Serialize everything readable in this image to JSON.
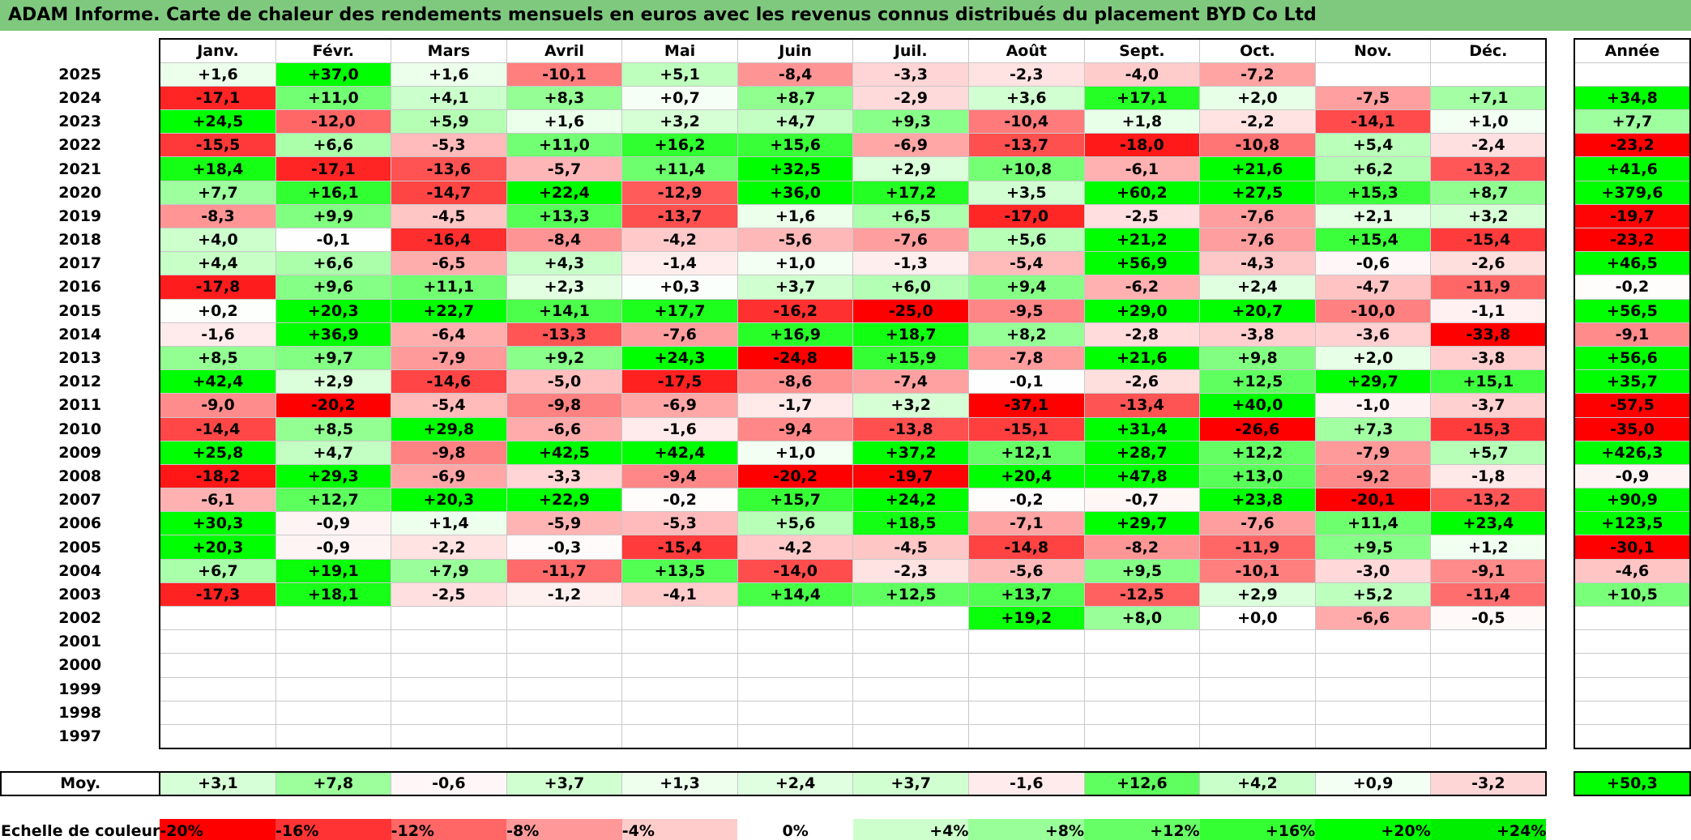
{
  "title": "ADAM Informe. Carte de chaleur des rendements mensuels en euros avec les revenus connus distribués du placement BYD Co Ltd",
  "chart_data": {
    "type": "heatmap",
    "title": "ADAM Informe. Carte de chaleur des rendements mensuels en euros avec les revenus connus distribués du placement BYD Co Ltd",
    "columns": [
      "Janv.",
      "Févr.",
      "Mars",
      "Avril",
      "Mai",
      "Juin",
      "Juil.",
      "Août",
      "Sept.",
      "Oct.",
      "Nov.",
      "Déc."
    ],
    "annual_header": "Année",
    "rows": [
      {
        "year": "2025",
        "months": [
          "+1,6",
          "+37,0",
          "+1,6",
          "-10,1",
          "+5,1",
          "-8,4",
          "-3,3",
          "-2,3",
          "-4,0",
          "-7,2",
          "",
          ""
        ],
        "annual": ""
      },
      {
        "year": "2024",
        "months": [
          "-17,1",
          "+11,0",
          "+4,1",
          "+8,3",
          "+0,7",
          "+8,7",
          "-2,9",
          "+3,6",
          "+17,1",
          "+2,0",
          "-7,5",
          "+7,1"
        ],
        "annual": "+34,8"
      },
      {
        "year": "2023",
        "months": [
          "+24,5",
          "-12,0",
          "+5,9",
          "+1,6",
          "+3,2",
          "+4,7",
          "+9,3",
          "-10,4",
          "+1,8",
          "-2,2",
          "-14,1",
          "+1,0"
        ],
        "annual": "+7,7"
      },
      {
        "year": "2022",
        "months": [
          "-15,5",
          "+6,6",
          "-5,3",
          "+11,0",
          "+16,2",
          "+15,6",
          "-6,9",
          "-13,7",
          "-18,0",
          "-10,8",
          "+5,4",
          "-2,4"
        ],
        "annual": "-23,2"
      },
      {
        "year": "2021",
        "months": [
          "+18,4",
          "-17,1",
          "-13,6",
          "-5,7",
          "+11,4",
          "+32,5",
          "+2,9",
          "+10,8",
          "-6,1",
          "+21,6",
          "+6,2",
          "-13,2"
        ],
        "annual": "+41,6"
      },
      {
        "year": "2020",
        "months": [
          "+7,7",
          "+16,1",
          "-14,7",
          "+22,4",
          "-12,9",
          "+36,0",
          "+17,2",
          "+3,5",
          "+60,2",
          "+27,5",
          "+15,3",
          "+8,7"
        ],
        "annual": "+379,6"
      },
      {
        "year": "2019",
        "months": [
          "-8,3",
          "+9,9",
          "-4,5",
          "+13,3",
          "-13,7",
          "+1,6",
          "+6,5",
          "-17,0",
          "-2,5",
          "-7,6",
          "+2,1",
          "+3,2"
        ],
        "annual": "-19,7"
      },
      {
        "year": "2018",
        "months": [
          "+4,0",
          "-0,1",
          "-16,4",
          "-8,4",
          "-4,2",
          "-5,6",
          "-7,6",
          "+5,6",
          "+21,2",
          "-7,6",
          "+15,4",
          "-15,4"
        ],
        "annual": "-23,2"
      },
      {
        "year": "2017",
        "months": [
          "+4,4",
          "+6,6",
          "-6,5",
          "+4,3",
          "-1,4",
          "+1,0",
          "-1,3",
          "-5,4",
          "+56,9",
          "-4,3",
          "-0,6",
          "-2,6"
        ],
        "annual": "+46,5"
      },
      {
        "year": "2016",
        "months": [
          "-17,8",
          "+9,6",
          "+11,1",
          "+2,3",
          "+0,3",
          "+3,7",
          "+6,0",
          "+9,4",
          "-6,2",
          "+2,4",
          "-4,7",
          "-11,9"
        ],
        "annual": "-0,2"
      },
      {
        "year": "2015",
        "months": [
          "+0,2",
          "+20,3",
          "+22,7",
          "+14,1",
          "+17,7",
          "-16,2",
          "-25,0",
          "-9,5",
          "+29,0",
          "+20,7",
          "-10,0",
          "-1,1"
        ],
        "annual": "+56,5"
      },
      {
        "year": "2014",
        "months": [
          "-1,6",
          "+36,9",
          "-6,4",
          "-13,3",
          "-7,6",
          "+16,9",
          "+18,7",
          "+8,2",
          "-2,8",
          "-3,8",
          "-3,6",
          "-33,8"
        ],
        "annual": "-9,1"
      },
      {
        "year": "2013",
        "months": [
          "+8,5",
          "+9,7",
          "-7,9",
          "+9,2",
          "+24,3",
          "-24,8",
          "+15,9",
          "-7,8",
          "+21,6",
          "+9,8",
          "+2,0",
          "-3,8"
        ],
        "annual": "+56,6"
      },
      {
        "year": "2012",
        "months": [
          "+42,4",
          "+2,9",
          "-14,6",
          "-5,0",
          "-17,5",
          "-8,6",
          "-7,4",
          "-0,1",
          "-2,6",
          "+12,5",
          "+29,7",
          "+15,1"
        ],
        "annual": "+35,7"
      },
      {
        "year": "2011",
        "months": [
          "-9,0",
          "-20,2",
          "-5,4",
          "-9,8",
          "-6,9",
          "-1,7",
          "+3,2",
          "-37,1",
          "-13,4",
          "+40,0",
          "-1,0",
          "-3,7"
        ],
        "annual": "-57,5"
      },
      {
        "year": "2010",
        "months": [
          "-14,4",
          "+8,5",
          "+29,8",
          "-6,6",
          "-1,6",
          "-9,4",
          "-13,8",
          "-15,1",
          "+31,4",
          "-26,6",
          "+7,3",
          "-15,3"
        ],
        "annual": "-35,0"
      },
      {
        "year": "2009",
        "months": [
          "+25,8",
          "+4,7",
          "-9,8",
          "+42,5",
          "+42,4",
          "+1,0",
          "+37,2",
          "+12,1",
          "+28,7",
          "+12,2",
          "-7,9",
          "+5,7"
        ],
        "annual": "+426,3"
      },
      {
        "year": "2008",
        "months": [
          "-18,2",
          "+29,3",
          "-6,9",
          "-3,3",
          "-9,4",
          "-20,2",
          "-19,7",
          "+20,4",
          "+47,8",
          "+13,0",
          "-9,2",
          "-1,8"
        ],
        "annual": "-0,9"
      },
      {
        "year": "2007",
        "months": [
          "-6,1",
          "+12,7",
          "+20,3",
          "+22,9",
          "-0,2",
          "+15,7",
          "+24,2",
          "-0,2",
          "-0,7",
          "+23,8",
          "-20,1",
          "-13,2"
        ],
        "annual": "+90,9"
      },
      {
        "year": "2006",
        "months": [
          "+30,3",
          "-0,9",
          "+1,4",
          "-5,9",
          "-5,3",
          "+5,6",
          "+18,5",
          "-7,1",
          "+29,7",
          "-7,6",
          "+11,4",
          "+23,4"
        ],
        "annual": "+123,5"
      },
      {
        "year": "2005",
        "months": [
          "+20,3",
          "-0,9",
          "-2,2",
          "-0,3",
          "-15,4",
          "-4,2",
          "-4,5",
          "-14,8",
          "-8,2",
          "-11,9",
          "+9,5",
          "+1,2"
        ],
        "annual": "-30,1"
      },
      {
        "year": "2004",
        "months": [
          "+6,7",
          "+19,1",
          "+7,9",
          "-11,7",
          "+13,5",
          "-14,0",
          "-2,3",
          "-5,6",
          "+9,5",
          "-10,1",
          "-3,0",
          "-9,1"
        ],
        "annual": "-4,6"
      },
      {
        "year": "2003",
        "months": [
          "-17,3",
          "+18,1",
          "-2,5",
          "-1,2",
          "-4,1",
          "+14,4",
          "+12,5",
          "+13,7",
          "-12,5",
          "+2,9",
          "+5,2",
          "-11,4"
        ],
        "annual": "+10,5"
      },
      {
        "year": "2002",
        "months": [
          "",
          "",
          "",
          "",
          "",
          "",
          "",
          "+19,2",
          "+8,0",
          "+0,0",
          "-6,6",
          "-0,5"
        ],
        "annual": ""
      },
      {
        "year": "2001",
        "months": [
          "",
          "",
          "",
          "",
          "",
          "",
          "",
          "",
          "",
          "",
          "",
          ""
        ],
        "annual": ""
      },
      {
        "year": "2000",
        "months": [
          "",
          "",
          "",
          "",
          "",
          "",
          "",
          "",
          "",
          "",
          "",
          ""
        ],
        "annual": ""
      },
      {
        "year": "1999",
        "months": [
          "",
          "",
          "",
          "",
          "",
          "",
          "",
          "",
          "",
          "",
          "",
          ""
        ],
        "annual": ""
      },
      {
        "year": "1998",
        "months": [
          "",
          "",
          "",
          "",
          "",
          "",
          "",
          "",
          "",
          "",
          "",
          ""
        ],
        "annual": ""
      },
      {
        "year": "1997",
        "months": [
          "",
          "",
          "",
          "",
          "",
          "",
          "",
          "",
          "",
          "",
          "",
          ""
        ],
        "annual": ""
      }
    ],
    "average": {
      "label": "Moy.",
      "months": [
        "+3,1",
        "+7,8",
        "-0,6",
        "+3,7",
        "+1,3",
        "+2,4",
        "+3,7",
        "-1,6",
        "+12,6",
        "+4,2",
        "+0,9",
        "-3,2"
      ],
      "annual": "+50,3"
    },
    "legend": {
      "label": "Echelle de couleur",
      "items": [
        "-20%",
        "-16%",
        "-12%",
        "-8%",
        "-4%",
        "0%",
        "+4%",
        "+8%",
        "+12%",
        "+16%",
        "+20%",
        "+24%"
      ],
      "colors": [
        "#ff0000",
        "#ff3333",
        "#ff6666",
        "#ff9999",
        "#ffcccc",
        "#ffffff",
        "#ccffcc",
        "#99ff99",
        "#66ff66",
        "#33ff33",
        "#00ff00",
        "#00ee00"
      ]
    },
    "colors": {
      "negative": "#ff0000",
      "neutral": "#ffffff",
      "positive": "#00ff00",
      "title_bar": "#7fc97f"
    }
  }
}
